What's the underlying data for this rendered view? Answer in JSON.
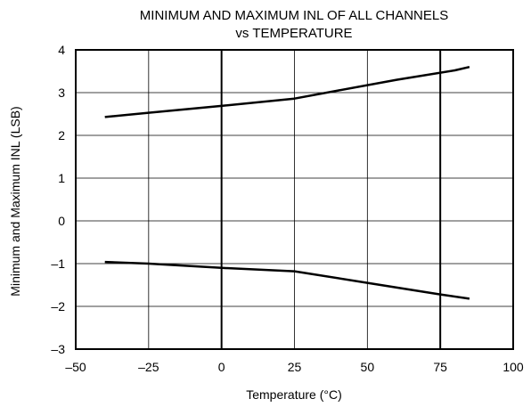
{
  "chart_data": {
    "type": "line",
    "title_lines": [
      "MINIMUM AND MAXIMUM INL OF ALL CHANNELS",
      "vs TEMPERATURE"
    ],
    "xlabel": "Temperature (°C)",
    "ylabel": "Minimum and Maximum INL (LSB)",
    "xlim": [
      -50,
      100
    ],
    "ylim": [
      -3,
      4
    ],
    "x_ticks": [
      -50,
      -25,
      0,
      25,
      50,
      75,
      100
    ],
    "x_tick_labels": [
      "–50",
      "–25",
      "0",
      "25",
      "50",
      "75",
      "100"
    ],
    "y_ticks": [
      -3,
      -2,
      -1,
      0,
      1,
      2,
      3,
      4
    ],
    "y_tick_labels": [
      "–3",
      "–2",
      "–1",
      "0",
      "1",
      "2",
      "3",
      "4"
    ],
    "grid": true,
    "bold_gridlines_x": [
      0,
      75
    ],
    "series": [
      {
        "x": [
          -40,
          -25,
          0,
          25,
          40,
          60,
          80,
          85
        ],
        "y": [
          2.43,
          2.53,
          2.69,
          2.86,
          3.05,
          3.3,
          3.52,
          3.6
        ]
      },
      {
        "x": [
          -40,
          -25,
          0,
          25,
          50,
          75,
          85
        ],
        "y": [
          -0.96,
          -1.0,
          -1.1,
          -1.18,
          -1.45,
          -1.72,
          -1.82
        ]
      }
    ],
    "line_color": "#000000"
  }
}
